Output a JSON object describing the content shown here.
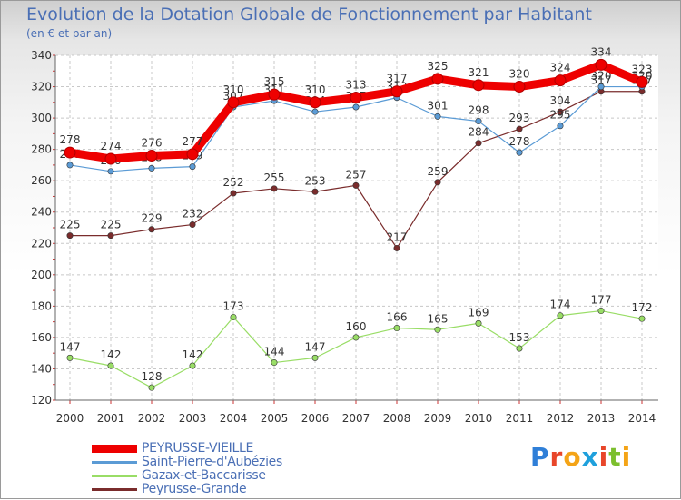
{
  "header": {
    "title": "Evolution de la Dotation Globale de Fonctionnement par Habitant",
    "subtitle": "(en € et par an)"
  },
  "logo": {
    "text": "Proxiti",
    "letters": [
      "P",
      "r",
      "o",
      "x",
      "i",
      "t",
      "i"
    ],
    "colors": [
      "#2f7fd8",
      "#e8462a",
      "#f4a417",
      "#1fa0dc",
      "#e8462a",
      "#7cbf2e",
      "#f4a417"
    ]
  },
  "chart_data": {
    "type": "line",
    "title": "Evolution de la Dotation Globale de Fonctionnement par Habitant",
    "subtitle": "(en € et par an)",
    "xlabel": "",
    "ylabel": "",
    "ylim": [
      120,
      340
    ],
    "yticks": [
      120,
      140,
      160,
      180,
      200,
      220,
      240,
      260,
      280,
      300,
      320,
      340
    ],
    "grid": true,
    "legend_position": "bottom-left",
    "categories": [
      "2000",
      "2001",
      "2002",
      "2003",
      "2004",
      "2005",
      "2006",
      "2007",
      "2008",
      "2009",
      "2010",
      "2011",
      "2012",
      "2013",
      "2014"
    ],
    "series": [
      {
        "name": "PEYRUSSE-VIEILLE",
        "color": "#ee0000",
        "emphasis": true,
        "values": [
          278,
          274,
          276,
          277,
          310,
          315,
          310,
          313,
          317,
          325,
          321,
          320,
          324,
          334,
          323
        ]
      },
      {
        "name": "Saint-Pierre-d'Aubézies",
        "color": "#5b9bd5",
        "emphasis": false,
        "values": [
          270,
          266,
          268,
          269,
          307,
          311,
          304,
          307,
          313,
          301,
          298,
          278,
          295,
          320,
          320
        ]
      },
      {
        "name": "Gazax-et-Baccarisse",
        "color": "#99dd66",
        "emphasis": false,
        "values": [
          147,
          142,
          128,
          142,
          173,
          144,
          147,
          160,
          166,
          165,
          169,
          153,
          174,
          177,
          172
        ]
      },
      {
        "name": "Peyrusse-Grande",
        "color": "#7a2c2c",
        "emphasis": false,
        "values": [
          225,
          225,
          229,
          232,
          252,
          255,
          253,
          257,
          217,
          259,
          284,
          293,
          304,
          317,
          317
        ]
      }
    ]
  }
}
